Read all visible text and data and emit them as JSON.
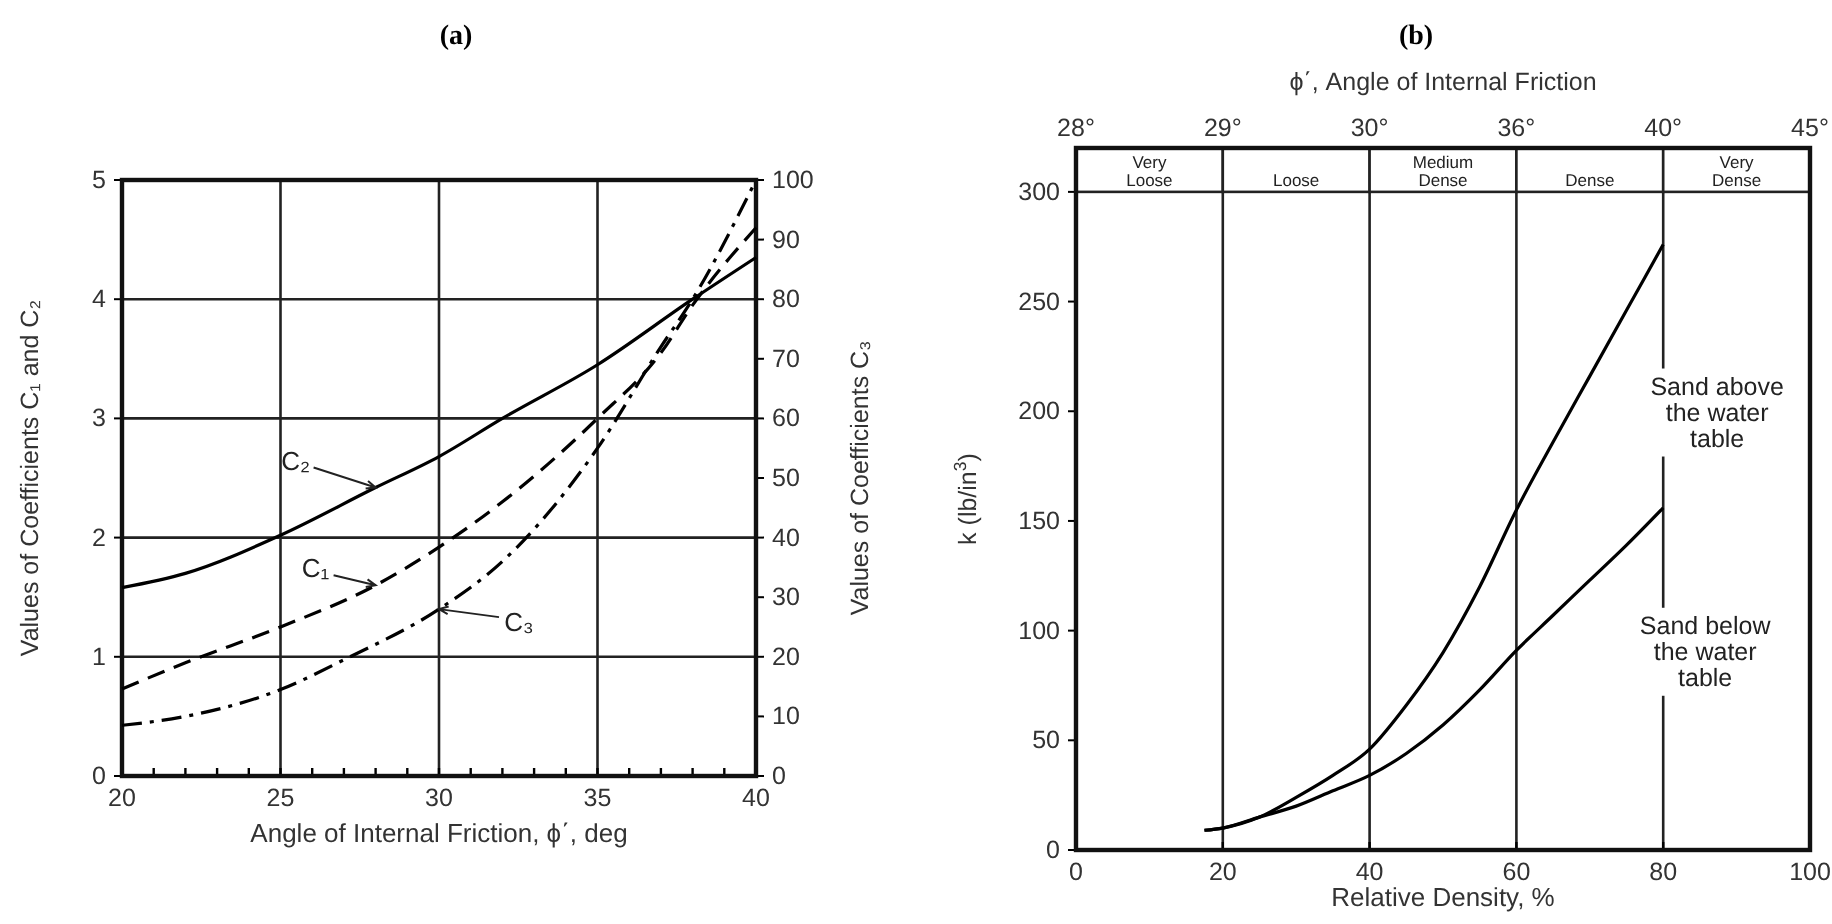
{
  "chart_data": [
    {
      "type": "line",
      "title": "(a)",
      "xlabel": "Angle of Internal Friction, ϕ΄, deg",
      "ylabel": "Values of Coefficients C₁ and C₂",
      "y2label": "Values of Coefficients C₃",
      "xlim": [
        20,
        40
      ],
      "ylim": [
        0,
        5
      ],
      "y2lim": [
        0,
        100
      ],
      "xticks": [
        20,
        {
          "value": 21,
          "label": null
        },
        {
          "value": 22,
          "label": null
        },
        {
          "value": 23,
          "label": null
        },
        {
          "value": 24,
          "label": null
        },
        25,
        {
          "value": 26,
          "label": null
        },
        {
          "value": 27,
          "label": null
        },
        {
          "value": 28,
          "label": null
        },
        {
          "value": 29,
          "label": null
        },
        30,
        {
          "value": 31,
          "label": null
        },
        {
          "value": 32,
          "label": null
        },
        {
          "value": 33,
          "label": null
        },
        {
          "value": 34,
          "label": null
        },
        35,
        {
          "value": 36,
          "label": null
        },
        {
          "value": 37,
          "label": null
        },
        {
          "value": 38,
          "label": null
        },
        {
          "value": 39,
          "label": null
        },
        40
      ],
      "yticks": [
        0,
        1,
        2,
        3,
        4,
        5
      ],
      "y2ticks": [
        0,
        10,
        20,
        30,
        40,
        50,
        60,
        70,
        80,
        90,
        100
      ],
      "grid": true,
      "series": [
        {
          "name": "C₂",
          "color": "#000000",
          "line_style": "solid",
          "x": [
            20,
            22,
            25,
            28,
            30,
            32,
            35,
            38,
            40
          ],
          "values": [
            1.58,
            1.7,
            2.02,
            2.42,
            2.68,
            3.0,
            3.45,
            4.0,
            4.35
          ]
        },
        {
          "name": "C₁",
          "color": "#000000",
          "line_style": "dashed",
          "x": [
            20,
            22,
            25,
            28,
            30,
            32,
            35,
            37,
            38,
            40
          ],
          "values": [
            0.73,
            0.95,
            1.25,
            1.6,
            1.92,
            2.3,
            3.0,
            3.55,
            3.95,
            4.6
          ]
        },
        {
          "name": "C₃",
          "color": "#000000",
          "line_style": "dashdot",
          "axis": "y2",
          "x": [
            20,
            22,
            25,
            27,
            30,
            32,
            35,
            37,
            38,
            40
          ],
          "values": [
            8.5,
            10,
            14.5,
            19.5,
            28,
            36,
            55,
            72,
            80,
            100
          ]
        }
      ]
    },
    {
      "type": "line",
      "title": "(b)",
      "xlabel": "Relative Density, %",
      "ylabel": "k (lb/in$^{3}$)",
      "x2label": "ϕ΄, Angle of Internal Friction",
      "xlim": [
        0,
        100
      ],
      "ylim": [
        0,
        320
      ],
      "xticks": [
        0,
        20,
        40,
        60,
        80,
        100
      ],
      "yticks": [
        0,
        50,
        100,
        150,
        200,
        250,
        300
      ],
      "annotations": [
        "28°",
        "29°",
        "30°",
        "36°",
        "40°",
        "45°"
      ],
      "grid": "x",
      "bands": [
        {
          "axis": "x",
          "from": 0,
          "to": 20,
          "label": "Very Loose",
          "color": "#ffffff"
        },
        {
          "axis": "x",
          "from": 20,
          "to": 40,
          "label": "Loose",
          "color": "#ffffff"
        },
        {
          "axis": "x",
          "from": 40,
          "to": 60,
          "label": "Medium Dense",
          "color": "#ffffff"
        },
        {
          "axis": "x",
          "from": 60,
          "to": 80,
          "label": "Dense",
          "color": "#ffffff"
        },
        {
          "axis": "x",
          "from": 80,
          "to": 100,
          "label": "Very Dense",
          "color": "#ffffff"
        }
      ],
      "series": [
        {
          "name": "Sand above the water table",
          "color": "#000000",
          "line_style": "solid",
          "x": [
            17.5,
            20,
            25,
            30,
            35,
            40,
            45,
            50,
            55,
            60,
            65,
            70,
            75,
            80
          ],
          "values": [
            9,
            10,
            15,
            24,
            34,
            46,
            66,
            90,
            120,
            155,
            186,
            216,
            246,
            276
          ]
        },
        {
          "name": "Sand below the water table",
          "color": "#000000",
          "line_style": "solid",
          "x": [
            17.5,
            20,
            25,
            30,
            35,
            40,
            45,
            50,
            55,
            60,
            65,
            70,
            75,
            80
          ],
          "values": [
            9,
            10,
            15,
            20,
            27,
            34,
            44,
            57,
            73,
            91,
            107,
            123,
            139,
            156
          ]
        }
      ]
    }
  ]
}
